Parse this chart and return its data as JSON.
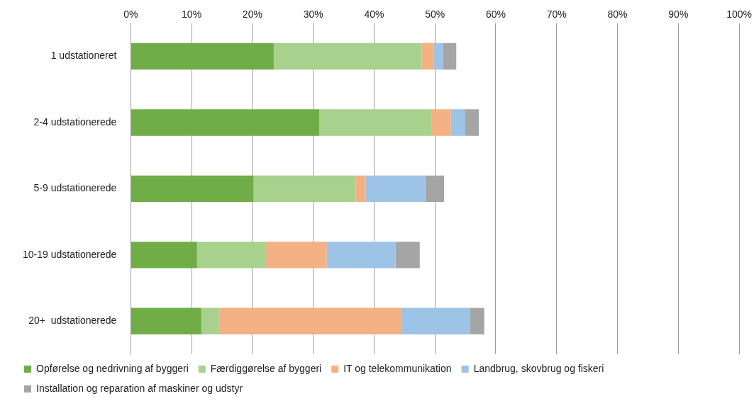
{
  "chart_data": {
    "type": "bar",
    "orientation": "horizontal",
    "stacked": true,
    "categories": [
      "1 udstationeret",
      "2-4 udstationerede",
      "5-9 udstationerede",
      "10-19 udstationerede",
      "20+  udstationerede"
    ],
    "series": [
      {
        "name": "Opførelse og nedrivning af byggeri",
        "color": "#70ad47",
        "values": [
          23.5,
          31.0,
          20.2,
          10.9,
          11.6
        ]
      },
      {
        "name": "Færdiggørelse af byggeri",
        "color": "#a9d18e",
        "values": [
          24.3,
          18.5,
          16.8,
          11.2,
          2.9
        ]
      },
      {
        "name": "IT og telekommunikation",
        "color": "#f4b183",
        "values": [
          2.0,
          3.1,
          1.6,
          10.1,
          29.9
        ]
      },
      {
        "name": "Landbrug, skovbrug og fiskeri",
        "color": "#9dc3e6",
        "values": [
          1.5,
          2.3,
          9.8,
          11.3,
          11.4
        ]
      },
      {
        "name": "Installation og reparation af maskiner og udstyr",
        "color": "#a5a5a5",
        "values": [
          2.2,
          2.3,
          3.1,
          4.0,
          2.3
        ]
      }
    ],
    "xlim": [
      0,
      100
    ],
    "xticks": [
      {
        "value": 0,
        "label": "0%"
      },
      {
        "value": 10,
        "label": "10%"
      },
      {
        "value": 20,
        "label": "20%"
      },
      {
        "value": 30,
        "label": "30%"
      },
      {
        "value": 40,
        "label": "40%"
      },
      {
        "value": 50,
        "label": "50%"
      },
      {
        "value": 60,
        "label": "60%"
      },
      {
        "value": 70,
        "label": "70%"
      },
      {
        "value": 80,
        "label": "80%"
      },
      {
        "value": 90,
        "label": "90%"
      },
      {
        "value": 100,
        "label": "100%"
      }
    ],
    "grid": "x",
    "legend": "bottom"
  }
}
